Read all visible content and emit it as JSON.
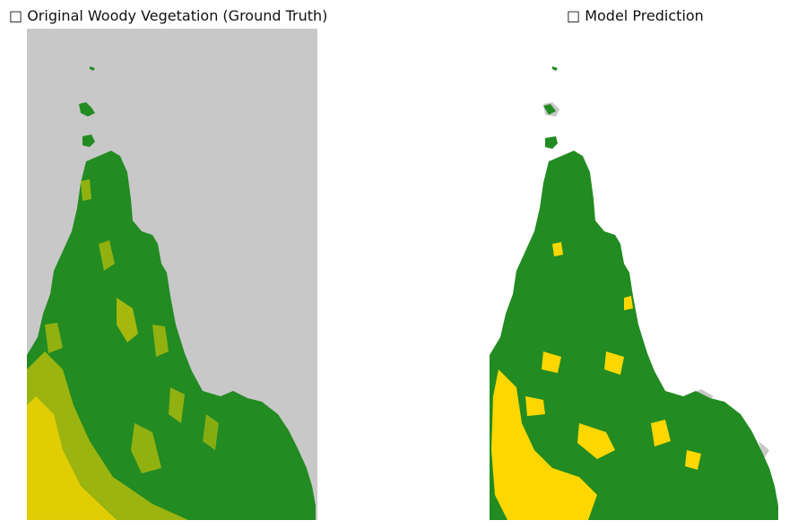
{
  "panels": [
    {
      "title": "□ Original Woody Vegetation (Ground Truth)",
      "background": "#c8c8c8"
    },
    {
      "title": "□ Model Prediction",
      "background": "#ffffff"
    }
  ],
  "colors": {
    "woody": "#228b22",
    "non_woody": "#ffd700",
    "no_data": "#c8c8c8"
  }
}
